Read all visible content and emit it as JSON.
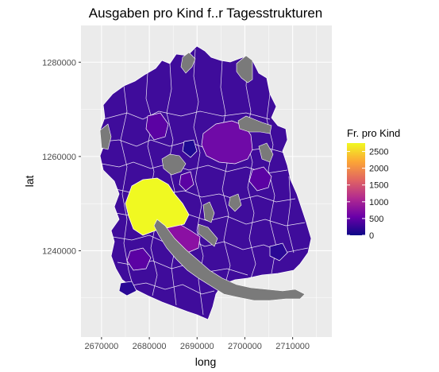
{
  "chart_data": {
    "type": "map",
    "title": "Ausgaben pro Kind f..r Tagesstrukturen",
    "xlabel": "long",
    "ylabel": "lat",
    "x_ticks": [
      "2670000",
      "2680000",
      "2690000",
      "2700000",
      "2710000"
    ],
    "y_ticks": [
      "1240000",
      "1260000",
      "1280000"
    ],
    "x_tick_values": [
      2670000,
      2680000,
      2690000,
      2700000,
      2710000
    ],
    "y_tick_values": [
      1240000,
      1260000,
      1280000
    ],
    "xlim": [
      2665700,
      2718200
    ],
    "ylim": [
      1221700,
      1287800
    ],
    "grid": true,
    "legend": {
      "title": "Fr. pro Kind",
      "placement": "right",
      "min": 0,
      "max": 2750,
      "ticks": [
        {
          "value": 2500,
          "label": "2500"
        },
        {
          "value": 2000,
          "label": "2000"
        },
        {
          "value": 1500,
          "label": "1500"
        },
        {
          "value": 1000,
          "label": "1000"
        },
        {
          "value": 500,
          "label": "500"
        },
        {
          "value": 0,
          "label": "0"
        }
      ],
      "colors": [
        "#0d0887",
        "#6a00a8",
        "#b12a90",
        "#e16462",
        "#fca636",
        "#f0f921"
      ]
    },
    "notable_regions": [
      {
        "description": "highest value municipality",
        "value": 2750,
        "color": "#f0f921"
      },
      {
        "description": "high value municipality",
        "value": 700,
        "color": "#8b10a3"
      },
      {
        "description": "elevated municipality",
        "value": 450,
        "color": "#6a00a8"
      },
      {
        "description": "missing data areas",
        "value": null,
        "color": "#7a7a7a"
      }
    ]
  },
  "colors": {
    "panel_background": "#ebebeb",
    "grid_major": "#ffffff",
    "base_fill": "#3f0c9b",
    "na_fill": "#7a7a7a",
    "lake_fill": "#7a7a7a",
    "highlight_yellow": "#f0f921",
    "highlight_magenta": "#9b179e",
    "highlight_purple": "#7a0fa6"
  }
}
